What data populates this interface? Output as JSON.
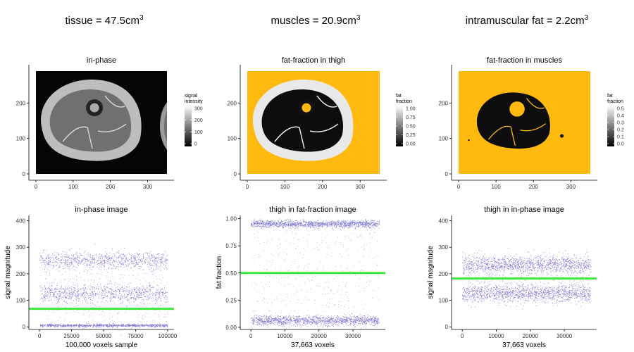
{
  "figure_titles": [
    {
      "label": "tissue",
      "value": "47.5cm",
      "exponent": "3"
    },
    {
      "label": "muscles",
      "value": "20.9cm",
      "exponent": "3"
    },
    {
      "label": "intramuscular fat",
      "value": "2.2cm",
      "exponent": "3"
    }
  ],
  "colors": {
    "fat": "#FFB90F",
    "points": "#1A0DAB",
    "threshold": "#3CE83C",
    "axis": "#000000"
  },
  "chart_data": [
    {
      "type": "heatmap",
      "title": "in-phase",
      "x_ticks": [
        0,
        100,
        200,
        300
      ],
      "y_ticks": [
        0,
        100,
        200
      ],
      "xlim": [
        0,
        352
      ],
      "ylim": [
        0,
        290
      ],
      "legend": {
        "title_lines": [
          "signal",
          "intensity"
        ],
        "ticks": [
          "300",
          "200",
          "100",
          "0"
        ],
        "palette": "grayscale"
      }
    },
    {
      "type": "heatmap",
      "title": "fat-fraction in thigh",
      "x_ticks": [
        0,
        100,
        200,
        300
      ],
      "y_ticks": [
        0,
        100,
        200
      ],
      "xlim": [
        0,
        352
      ],
      "ylim": [
        0,
        290
      ],
      "legend": {
        "title_lines": [
          "fat",
          "fraction"
        ],
        "ticks": [
          "1.00",
          "0.75",
          "0.50",
          "0.25",
          "0.00"
        ],
        "palette": "grayscale"
      }
    },
    {
      "type": "heatmap",
      "title": "fat-fraction in muscles",
      "x_ticks": [
        0,
        100,
        200,
        300
      ],
      "y_ticks": [
        0,
        100,
        200
      ],
      "xlim": [
        0,
        352
      ],
      "ylim": [
        0,
        290
      ],
      "legend": {
        "title_lines": [
          "fat",
          "fraction"
        ],
        "ticks": [
          "0.5",
          "0.4",
          "0.3",
          "0.2",
          "0.1",
          "0.0"
        ],
        "palette": "grayscale"
      }
    },
    {
      "type": "scatter",
      "title": "in-phase image",
      "xlabel": "100,000 voxels sample",
      "ylabel": "signal magnitude",
      "x_ticks": [
        "0",
        "25000",
        "50000",
        "75000",
        "100000"
      ],
      "x_tick_values": [
        0,
        25000,
        50000,
        75000,
        100000
      ],
      "y_ticks": [
        "0",
        "100",
        "200",
        "300",
        "400"
      ],
      "y_tick_values": [
        0,
        100,
        200,
        300,
        400
      ],
      "xlim": [
        -5000,
        105000
      ],
      "ylim": [
        -10,
        420
      ],
      "n_points": 100000,
      "bands": [
        {
          "center": 5,
          "spread": 5
        },
        {
          "center": 125,
          "spread": 30
        },
        {
          "center": 250,
          "spread": 30
        }
      ],
      "threshold": 68
    },
    {
      "type": "scatter",
      "title": "thigh in fat-fraction image",
      "xlabel": "37,663 voxels",
      "ylabel": "fat fraction",
      "x_ticks": [
        "0",
        "10000",
        "20000",
        "30000"
      ],
      "x_tick_values": [
        0,
        10000,
        20000,
        30000
      ],
      "y_ticks": [
        "0.00",
        "0.25",
        "0.50",
        "0.75",
        "1.00"
      ],
      "y_tick_values": [
        0,
        0.25,
        0.5,
        0.75,
        1.0
      ],
      "xlim": [
        -1900,
        39500
      ],
      "ylim": [
        -0.02,
        1.03
      ],
      "n_points": 37663,
      "bands": [
        {
          "center": 0.06,
          "spread": 0.04
        },
        {
          "center": 0.95,
          "spread": 0.03
        }
      ],
      "threshold": 0.5
    },
    {
      "type": "scatter",
      "title": "thigh in in-phase image",
      "xlabel": "37,663 voxels",
      "ylabel": "signal magnitude",
      "x_ticks": [
        "0",
        "10000",
        "20000",
        "30000"
      ],
      "x_tick_values": [
        0,
        10000,
        20000,
        30000
      ],
      "y_ticks": [
        "0",
        "100",
        "200",
        "300",
        "400"
      ],
      "y_tick_values": [
        0,
        100,
        200,
        300,
        400
      ],
      "xlim": [
        -1900,
        39500
      ],
      "ylim": [
        -10,
        420
      ],
      "n_points": 37663,
      "bands": [
        {
          "center": 125,
          "spread": 30
        },
        {
          "center": 235,
          "spread": 30
        }
      ],
      "threshold": 182
    }
  ]
}
